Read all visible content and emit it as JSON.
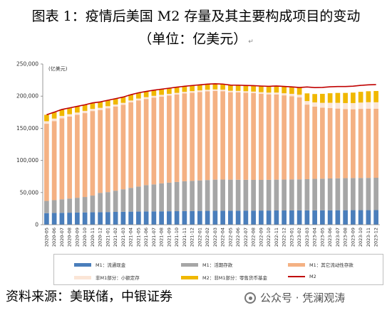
{
  "header": {
    "title": "图表 1：疫情后美国 M2 存量及其主要构成项目的变动",
    "subtitle": "（单位：亿美元）",
    "paragraph_mark": "↵"
  },
  "chart_data": {
    "type": "bar",
    "unit_label": "(亿美元)",
    "ylim": [
      0,
      250000
    ],
    "yticks": [
      "0",
      "50,000",
      "100,000",
      "150,000",
      "200,000",
      "250,000"
    ],
    "categories": [
      "2020-05",
      "2020-06",
      "2020-07",
      "2020-08",
      "2020-09",
      "2020-10",
      "2020-11",
      "2020-12",
      "2021-01",
      "2021-02",
      "2021-03",
      "2021-04",
      "2021-05",
      "2021-06",
      "2021-07",
      "2021-08",
      "2021-09",
      "2021-10",
      "2021-11",
      "2021-12",
      "2022-01",
      "2022-02",
      "2022-03",
      "2022-04",
      "2022-05",
      "2022-06",
      "2022-07",
      "2022-08",
      "2022-09",
      "2022-10",
      "2022-11",
      "2022-12",
      "2023-01",
      "2023-02",
      "2023-03",
      "2023-04",
      "2023-05",
      "2023-06",
      "2023-07",
      "2023-08",
      "2023-09",
      "2023-10",
      "2023-11",
      "2023-12"
    ],
    "series": [
      {
        "name": "M1：流通现金",
        "color": "#4a7ebb",
        "values": [
          18000,
          18200,
          18500,
          18700,
          18900,
          19100,
          19300,
          19500,
          19700,
          19900,
          20100,
          20300,
          20400,
          20600,
          20700,
          20800,
          20900,
          21000,
          21100,
          21300,
          21400,
          21500,
          21600,
          21700,
          21800,
          21800,
          21900,
          21900,
          22000,
          22000,
          22100,
          22100,
          22200,
          22200,
          22300,
          22300,
          22400,
          22400,
          22500,
          22500,
          22600,
          22600,
          22600,
          22700
        ]
      },
      {
        "name": "M1：活期存款",
        "color": "#a6a6a6",
        "values": [
          19000,
          20000,
          21000,
          22000,
          23000,
          24000,
          26000,
          30000,
          31000,
          33000,
          35000,
          37000,
          39000,
          41000,
          42000,
          43500,
          44500,
          45500,
          46500,
          47000,
          47500,
          48000,
          48500,
          48500,
          48300,
          48100,
          47900,
          47800,
          47700,
          47800,
          48000,
          48100,
          48200,
          48300,
          48500,
          49000,
          49200,
          49500,
          49700,
          49900,
          50000,
          50100,
          50200,
          50300
        ]
      },
      {
        "name": "M1：其它流动性存款",
        "color": "#f4b183",
        "values": [
          120000,
          123000,
          126000,
          127500,
          129000,
          130500,
          131500,
          129000,
          130500,
          131000,
          131500,
          133000,
          134000,
          134000,
          135000,
          135000,
          135500,
          136000,
          136500,
          137000,
          137500,
          138000,
          138000,
          137500,
          136000,
          136000,
          135500,
          135000,
          134000,
          133000,
          132500,
          131000,
          129500,
          127500,
          116000,
          112500,
          110500,
          109500,
          108500,
          107500,
          107000,
          107500,
          107800,
          107500
        ]
      },
      {
        "name": "非M1部分：小额定存",
        "color": "#fbe5d6",
        "values": [
          4000,
          3900,
          3800,
          3700,
          3600,
          3500,
          3400,
          3300,
          3200,
          3100,
          3000,
          2950,
          2900,
          2850,
          2800,
          2750,
          2700,
          2650,
          2600,
          2550,
          2500,
          2450,
          2400,
          2350,
          2300,
          2300,
          2350,
          2400,
          2500,
          2700,
          3000,
          3300,
          3700,
          4200,
          5500,
          6500,
          7500,
          8300,
          8900,
          9300,
          9600,
          9800,
          10000,
          10000
        ]
      },
      {
        "name": "M2：非M1部分：零售货币基金",
        "color": "#f0b800",
        "values": [
          10000,
          10000,
          10000,
          9800,
          9600,
          9400,
          9300,
          9200,
          9200,
          9100,
          9000,
          9000,
          8900,
          8900,
          8800,
          8800,
          8800,
          8800,
          8700,
          8700,
          8700,
          8700,
          8700,
          8700,
          8800,
          8900,
          9000,
          9200,
          9500,
          9800,
          10200,
          10500,
          10800,
          11200,
          12000,
          13000,
          14000,
          14800,
          15400,
          15800,
          16300,
          16700,
          17000,
          17500
        ]
      },
      {
        "name": "M2",
        "color": "#c00000",
        "values": [
          171000,
          175100,
          179300,
          181700,
          184100,
          186500,
          189500,
          191000,
          193600,
          196100,
          198600,
          202250,
          205200,
          207350,
          209300,
          210850,
          212400,
          213950,
          215400,
          216550,
          217600,
          218650,
          219200,
          218750,
          217200,
          217100,
          216650,
          216300,
          215700,
          215300,
          215800,
          215100,
          214400,
          213400,
          214300,
          213300,
          213600,
          214500,
          215000,
          215000,
          215500,
          216700,
          217600,
          218000
        ]
      }
    ]
  },
  "legend": [
    {
      "label": "M1：流通现金",
      "color": "#4a7ebb",
      "kind": "bar"
    },
    {
      "label": "M1：活期存款",
      "color": "#a6a6a6",
      "kind": "bar"
    },
    {
      "label": "M1：其它流动性存款",
      "color": "#f4b183",
      "kind": "bar"
    },
    {
      "label": "非M1部分：小额定存",
      "color": "#fbe5d6",
      "kind": "bar"
    },
    {
      "label": "M2：非M1部分：零售货币基金",
      "color": "#f0b800",
      "kind": "bar"
    },
    {
      "label": "M2",
      "color": "#c00000",
      "kind": "line"
    }
  ],
  "footer": {
    "source": "资料来源：美联储，中银证券",
    "watermark": "公众号 · 凭澜观涛"
  }
}
